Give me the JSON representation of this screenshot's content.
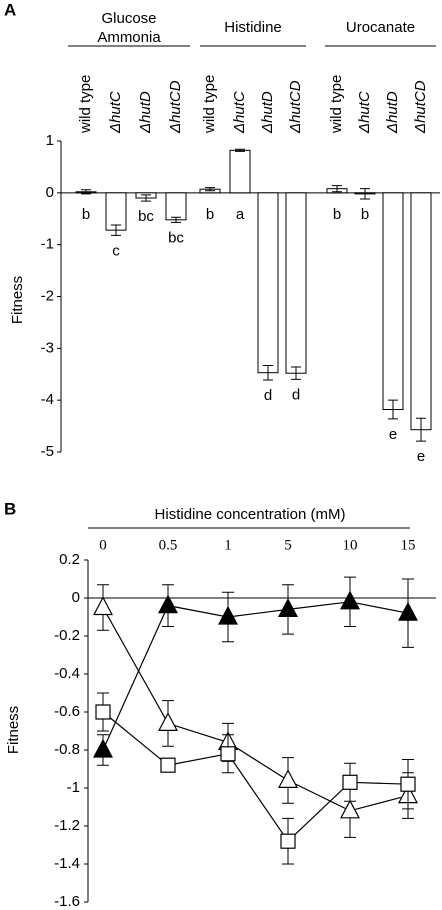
{
  "chart_data": [
    {
      "type": "bar",
      "panel": "A",
      "ylabel": "Fitness",
      "ylim": [
        -5,
        1
      ],
      "yticks": [
        -5,
        -4,
        -3,
        -2,
        -1,
        0,
        1
      ],
      "color": "#ffffff",
      "groups": [
        {
          "name": [
            "Glucose",
            "Ammonia"
          ],
          "categories": [
            "wild type",
            "ΔhutC",
            "ΔhutD",
            "ΔhutCD"
          ],
          "values": [
            0.02,
            -0.72,
            -0.1,
            -0.52
          ],
          "errors": [
            0.04,
            0.1,
            0.06,
            0.05
          ],
          "letters": [
            "b",
            "c",
            "bc",
            "bc"
          ]
        },
        {
          "name": [
            "Histidine"
          ],
          "categories": [
            "wild type",
            "ΔhutC",
            "ΔhutD",
            "ΔhutCD"
          ],
          "values": [
            0.07,
            0.82,
            -3.47,
            -3.48
          ],
          "errors": [
            0.03,
            0.02,
            0.14,
            0.12
          ],
          "letters": [
            "b",
            "a",
            "d",
            "d"
          ]
        },
        {
          "name": [
            "Urocanate"
          ],
          "categories": [
            "wild type",
            "ΔhutC",
            "ΔhutD",
            "ΔhutCD"
          ],
          "values": [
            0.08,
            -0.02,
            -4.18,
            -4.57
          ],
          "errors": [
            0.06,
            0.1,
            0.18,
            0.22
          ],
          "letters": [
            "b",
            "b",
            "e",
            "e"
          ]
        }
      ]
    },
    {
      "type": "line",
      "panel": "B",
      "xlabel": "Histidine concentration (mM)",
      "ylabel": "Fitness",
      "categories": [
        "0",
        "0.5",
        "1",
        "5",
        "10",
        "15"
      ],
      "ylim": [
        -1.6,
        0.2
      ],
      "yticks": [
        -1.6,
        -1.4,
        -1.2,
        -1,
        -0.8,
        -0.6,
        -0.4,
        -0.2,
        0,
        0.2
      ],
      "series": [
        {
          "marker": "triangle",
          "filled": true,
          "color": "#000000",
          "values": [
            -0.8,
            -0.04,
            -0.1,
            -0.06,
            -0.02,
            -0.08
          ],
          "errors": [
            0.08,
            0.11,
            0.13,
            0.13,
            0.13,
            0.18
          ]
        },
        {
          "marker": "triangle",
          "filled": false,
          "color": "#000000",
          "values": [
            -0.05,
            -0.66,
            -0.76,
            -0.96,
            -1.12,
            -1.04
          ],
          "errors": [
            0.12,
            0.12,
            0.1,
            0.12,
            0.14,
            0.12
          ]
        },
        {
          "marker": "square",
          "filled": false,
          "color": "#000000",
          "values": [
            -0.6,
            -0.88,
            -0.82,
            -1.28,
            -0.97,
            -0.98
          ],
          "errors": [
            0.1,
            0.01,
            0.1,
            0.12,
            0.1,
            0.13
          ]
        }
      ]
    }
  ]
}
